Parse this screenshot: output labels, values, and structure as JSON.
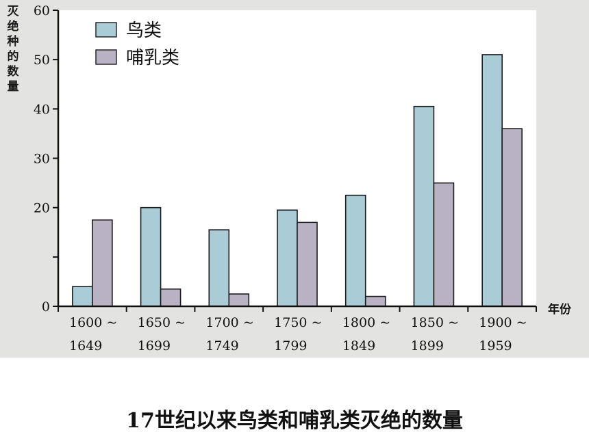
{
  "caption": "17世纪以来鸟类和哺乳类灭绝的数量",
  "colors": {
    "birds": "#a9ccd7",
    "mammals": "#b8b2c4",
    "axis": "#111111"
  },
  "chart_data": {
    "type": "bar",
    "title": "",
    "ylabel": "灭绝种的数量",
    "xlabel": "年份",
    "ylim": [
      0,
      60
    ],
    "yticks": [
      0,
      10,
      20,
      30,
      40,
      50,
      60
    ],
    "ytick_labels": [
      "0",
      "",
      "20",
      "30",
      "40",
      "50",
      "60"
    ],
    "categories": [
      [
        "1600 ~",
        "1649"
      ],
      [
        "1650 ~",
        "1699"
      ],
      [
        "1700 ~",
        "1749"
      ],
      [
        "1750 ~",
        "1799"
      ],
      [
        "1800 ~",
        "1849"
      ],
      [
        "1850 ~",
        "1899"
      ],
      [
        "1900 ~",
        "1959"
      ]
    ],
    "series": [
      {
        "name": "鸟类",
        "values": [
          4,
          20,
          15.5,
          19.5,
          22.5,
          40.5,
          51
        ]
      },
      {
        "name": "哺乳类",
        "values": [
          17.5,
          3.5,
          2.5,
          17,
          2,
          25,
          36
        ]
      }
    ],
    "legend_position": "top-left",
    "grid": false
  }
}
